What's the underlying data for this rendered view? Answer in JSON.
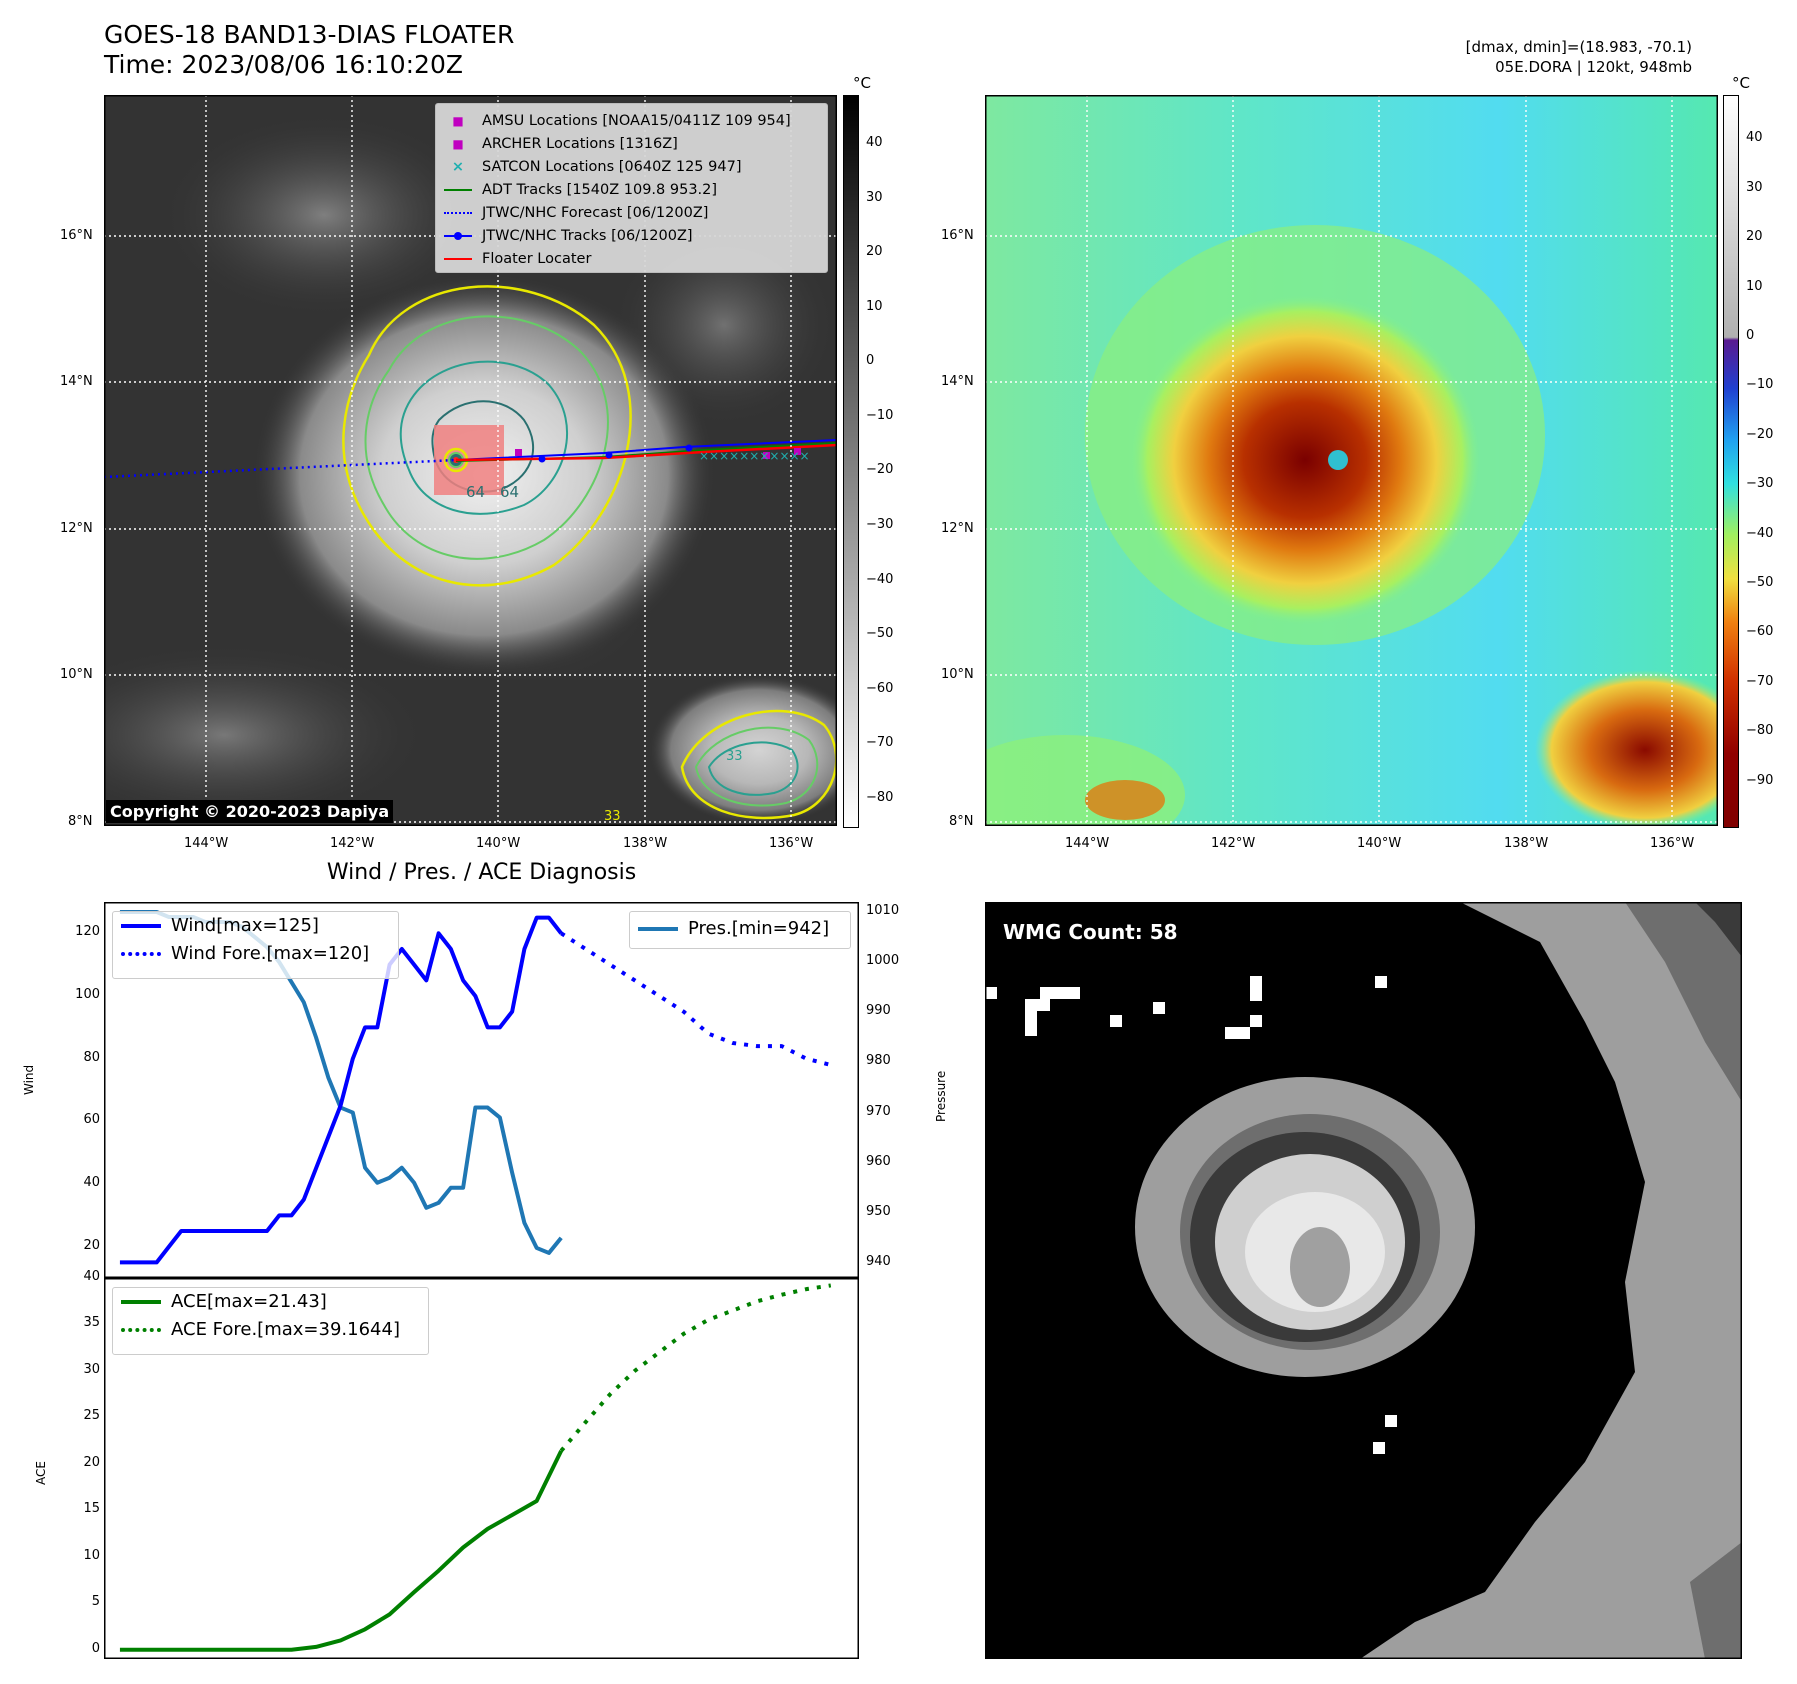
{
  "header": {
    "title_line1": "GOES-18 BAND13-DIAS FLOATER",
    "title_line2": "Time: 2023/08/06 16:10:20Z",
    "right_line1": "[dmax, dmin]=(18.983, -70.1)",
    "right_line2": "05E.DORA | 120kt, 948mb"
  },
  "map": {
    "lat_labels": [
      "16°N",
      "14°N",
      "12°N",
      "10°N",
      "8°N"
    ],
    "lon_labels": [
      "144°W",
      "142°W",
      "140°W",
      "138°W",
      "136°W"
    ],
    "copyright": "Copyright © 2020-2023 Dapiya",
    "contour_labels": [
      "64",
      "64",
      "33",
      "33"
    ],
    "legend": [
      {
        "label": "AMSU Locations [NOAA15/0411Z 109 954]",
        "marker": "square",
        "color": "#c000c0"
      },
      {
        "label": "ARCHER Locations [1316Z]",
        "marker": "square",
        "color": "#c000c0"
      },
      {
        "label": "SATCON Locations [0640Z 125 947]",
        "marker": "x",
        "color": "#20b0b0"
      },
      {
        "label": "ADT Tracks [1540Z 109.8 953.2]",
        "marker": "line",
        "color": "#008000"
      },
      {
        "label": "JTWC/NHC Forecast [06/1200Z]",
        "marker": "dotted",
        "color": "#0000ff"
      },
      {
        "label": "JTWC/NHC Tracks [06/1200Z]",
        "marker": "line-dot",
        "color": "#0000ff"
      },
      {
        "label": "Floater Locater",
        "marker": "line",
        "color": "#ff0000"
      }
    ]
  },
  "colorbar_gray": {
    "unit": "°C",
    "ticks": [
      "40",
      "30",
      "20",
      "10",
      "0",
      "−10",
      "−20",
      "−30",
      "−40",
      "−50",
      "−60",
      "−70",
      "−80"
    ]
  },
  "colorbar_color": {
    "unit": "°C",
    "ticks": [
      "40",
      "30",
      "20",
      "10",
      "0",
      "−10",
      "−20",
      "−30",
      "−40",
      "−50",
      "−60",
      "−70",
      "−80",
      "−90"
    ]
  },
  "diagnosis": {
    "title": "Wind / Pres. / ACE Diagnosis",
    "wind_ylabel": "Wind",
    "pres_ylabel": "Pressure",
    "ace_ylabel": "ACE",
    "wind_ticks": [
      "120",
      "100",
      "80",
      "60",
      "40",
      "20"
    ],
    "pres_ticks": [
      "1010",
      "1000",
      "990",
      "980",
      "970",
      "960",
      "950",
      "940"
    ],
    "ace_ticks": [
      "40",
      "35",
      "30",
      "25",
      "20",
      "15",
      "10",
      "5",
      "0"
    ],
    "legend_wind": "Wind[max=125]",
    "legend_wind_fore": "Wind Fore.[max=120]",
    "legend_pres": "Pres.[min=942]",
    "legend_ace": "ACE[max=21.43]",
    "legend_ace_fore": "ACE Fore.[max=39.1644]"
  },
  "wmg": {
    "label": "WMG Count: 58"
  },
  "chart_data": [
    {
      "type": "line",
      "title": "Wind / Pres. / ACE Diagnosis",
      "ylabel": "Wind",
      "ylim": [
        10,
        130
      ],
      "series": [
        {
          "name": "Wind[max=125]",
          "x": [
            0,
            1,
            2,
            3,
            4,
            5,
            6,
            7,
            8,
            9,
            10,
            11,
            12,
            13,
            14,
            15,
            16,
            17,
            18,
            19,
            20,
            21,
            22,
            23,
            24,
            25,
            26,
            27,
            28,
            29,
            30,
            31,
            32,
            33,
            34,
            35,
            36
          ],
          "values": [
            15,
            15,
            15,
            15,
            20,
            25,
            25,
            25,
            25,
            25,
            25,
            25,
            25,
            30,
            30,
            35,
            45,
            55,
            65,
            80,
            90,
            90,
            110,
            115,
            110,
            105,
            120,
            115,
            105,
            100,
            90,
            90,
            95,
            115,
            125,
            125,
            120
          ]
        },
        {
          "name": "Wind Fore.[max=120]",
          "x": [
            36,
            38,
            40,
            42,
            44,
            46,
            48,
            50,
            52,
            54,
            56,
            58
          ],
          "values": [
            120,
            115,
            110,
            105,
            100,
            95,
            88,
            85,
            84,
            84,
            80,
            78
          ]
        }
      ]
    },
    {
      "type": "line",
      "ylabel": "Pressure",
      "ylim": [
        937,
        1012
      ],
      "series": [
        {
          "name": "Pres.[min=942]",
          "x": [
            0,
            1,
            2,
            3,
            4,
            5,
            6,
            7,
            8,
            9,
            10,
            11,
            12,
            13,
            14,
            15,
            16,
            17,
            18,
            19,
            20,
            21,
            22,
            23,
            24,
            25,
            26,
            27,
            28,
            29,
            30,
            31,
            32,
            33,
            34,
            35,
            36
          ],
          "values": [
            1010,
            1010,
            1010,
            1010,
            1009,
            1009,
            1009,
            1008,
            1008,
            1008,
            1007,
            1005,
            1003,
            1000,
            996,
            992,
            985,
            977,
            971,
            970,
            959,
            956,
            957,
            959,
            956,
            951,
            952,
            955,
            955,
            971,
            971,
            969,
            958,
            948,
            943,
            942,
            945
          ]
        }
      ]
    },
    {
      "type": "line",
      "ylabel": "ACE",
      "ylim": [
        -1,
        40
      ],
      "series": [
        {
          "name": "ACE[max=21.43]",
          "x": [
            0,
            2,
            4,
            6,
            8,
            10,
            12,
            14,
            16,
            18,
            20,
            22,
            24,
            26,
            28,
            30,
            32,
            34,
            36
          ],
          "values": [
            0,
            0,
            0,
            0,
            0,
            0,
            0,
            0,
            0.3,
            1,
            2.2,
            3.8,
            6.2,
            8.5,
            11,
            13,
            14.5,
            16,
            21.4
          ]
        },
        {
          "name": "ACE Fore.[max=39.1644]",
          "x": [
            36,
            38,
            40,
            42,
            44,
            46,
            48,
            50,
            52,
            54,
            56,
            58
          ],
          "values": [
            21.4,
            24.5,
            27.5,
            30,
            32,
            34,
            35.5,
            36.5,
            37.5,
            38.2,
            38.8,
            39.2
          ]
        }
      ]
    }
  ]
}
